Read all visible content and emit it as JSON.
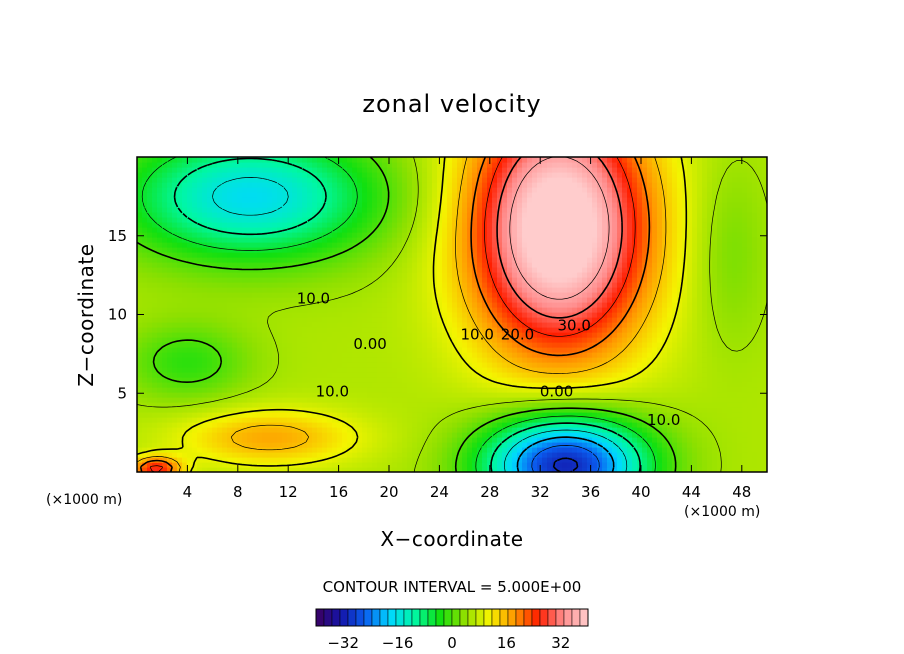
{
  "chart_data": {
    "type": "heatmap",
    "title": "zonal velocity",
    "xlabel": "X−coordinate",
    "ylabel": "Z−coordinate",
    "x_unit_left": "(×1000 m)",
    "x_unit_right": "(×1000 m)",
    "xlim": [
      0,
      50
    ],
    "ylim": [
      0,
      20
    ],
    "x_ticks": [
      4,
      8,
      12,
      16,
      20,
      24,
      28,
      32,
      36,
      40,
      44,
      48
    ],
    "y_ticks": [
      5,
      10,
      15
    ],
    "contour_interval_text": "CONTOUR INTERVAL = 5.000E+00",
    "contour_labels": [
      {
        "text": "10.0",
        "x": 14,
        "y": 10.7
      },
      {
        "text": "0.00",
        "x": 18.5,
        "y": 7.8
      },
      {
        "text": "10.0",
        "x": 15.5,
        "y": 4.8
      },
      {
        "text": "10.0",
        "x": 27,
        "y": 8.4
      },
      {
        "text": "20.0",
        "x": 30.2,
        "y": 8.4
      },
      {
        "text": "30.0",
        "x": 34.7,
        "y": 9.0
      },
      {
        "text": "0.00",
        "x": 33.3,
        "y": 4.8
      },
      {
        "text": "10.0",
        "x": 41.8,
        "y": 3.0
      }
    ],
    "field_features": [
      {
        "name": "upper jet max",
        "x": 33.5,
        "y": 13,
        "value": 33
      },
      {
        "name": "lower minimum",
        "x": 34,
        "y": 0.8,
        "value": -34
      },
      {
        "name": "upper-left minimum",
        "x": 9,
        "y": 17.5,
        "value": -15
      },
      {
        "name": "lower-left positive patch",
        "x": 10,
        "y": 2.2,
        "value": 14
      },
      {
        "name": "bottom-left corner patch",
        "x": 1.5,
        "y": 0.3,
        "value": 26
      }
    ],
    "colorbar": {
      "range": [
        -40,
        40
      ],
      "ticks": [
        -32,
        -16,
        0,
        16,
        32
      ],
      "tick_labels": [
        "−32",
        "−16",
        "0",
        "16",
        "32"
      ]
    },
    "colormap": [
      "#3d0060",
      "#1414a8",
      "#0a5ef0",
      "#00d8ff",
      "#00f7a4",
      "#10e010",
      "#8ee000",
      "#f4f400",
      "#ff9a00",
      "#ff1e00",
      "#ff8e8e",
      "#ffcccc"
    ],
    "grid": false
  }
}
